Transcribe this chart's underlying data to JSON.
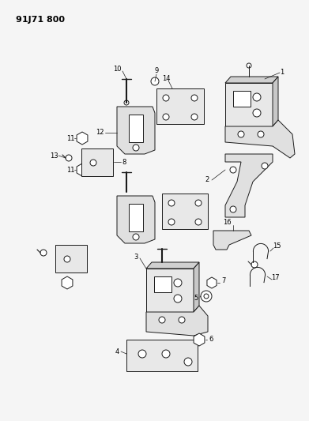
{
  "title": "91J71 800",
  "bg_color": "#f0f0f0",
  "line_color": "#1a1a1a",
  "fig_width": 3.91,
  "fig_height": 5.33,
  "dpi": 100
}
